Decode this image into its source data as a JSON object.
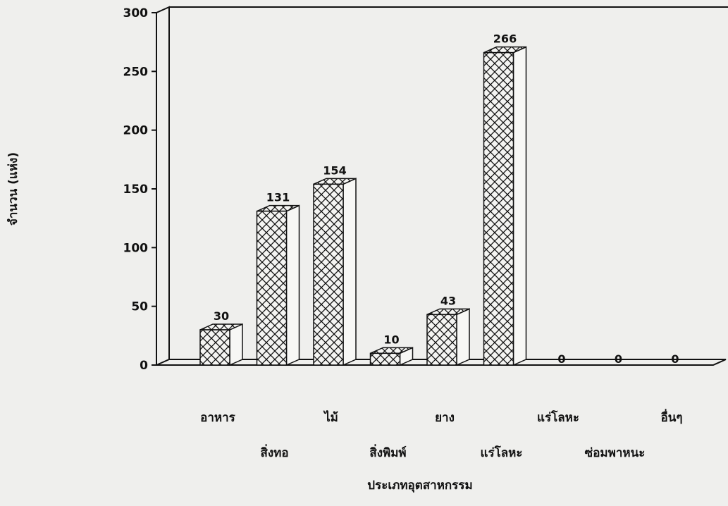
{
  "chart_data": {
    "type": "bar",
    "ylabel": "จำนวน (แห่ง)",
    "xlabel": "ประเภทอุตสาหกรรม",
    "ylim": [
      0,
      300
    ],
    "yticks": [
      0,
      50,
      100,
      150,
      200,
      250,
      300
    ],
    "categories": [
      "อาหาร",
      "สิ่งทอ",
      "ไม้",
      "สิ่งพิมพ์",
      "ยาง",
      "แร่โลหะ",
      "แร่โลหะ",
      "ซ่อมพาหนะ",
      "อื่นๆ"
    ],
    "values": [
      30,
      131,
      154,
      10,
      43,
      266,
      0,
      0,
      0
    ],
    "bar_pattern": "crosshatch",
    "grid": false,
    "legend": "none"
  }
}
